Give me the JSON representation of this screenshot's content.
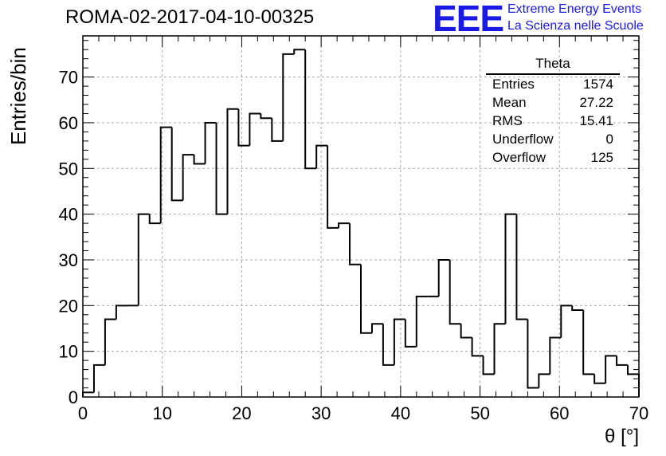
{
  "header": {
    "run_title": "ROMA-02-2017-04-10-00325",
    "logo_text": "EEE",
    "org_line1": "Extreme Energy Events",
    "org_line2": "La Scienza nelle Scuole"
  },
  "stats_box": {
    "title": "Theta",
    "rows": [
      {
        "label": "Entries",
        "value": "1574"
      },
      {
        "label": "Mean",
        "value": "27.22"
      },
      {
        "label": "RMS",
        "value": "15.41"
      },
      {
        "label": "Underflow",
        "value": "0"
      },
      {
        "label": "Overflow",
        "value": "125"
      }
    ]
  },
  "colors": {
    "logo": "#1a1ae6",
    "line": "#000000",
    "grid": "#aaaaaa"
  },
  "chart_data": {
    "type": "bar",
    "histogram": true,
    "xlabel": "θ [°]",
    "ylabel": "Entries/bin",
    "xlim": [
      0,
      70
    ],
    "ylim": [
      0,
      79
    ],
    "grid": true,
    "bin_width": 1.4,
    "x_ticks": [
      0,
      10,
      20,
      30,
      40,
      50,
      60,
      70
    ],
    "y_ticks": [
      0,
      10,
      20,
      30,
      40,
      50,
      60,
      70
    ],
    "values": [
      1,
      7,
      17,
      20,
      20,
      40,
      38,
      59,
      43,
      53,
      51,
      60,
      40,
      63,
      55,
      62,
      61,
      56,
      75,
      76,
      50,
      55,
      37,
      38,
      29,
      14,
      16,
      7,
      17,
      11,
      22,
      22,
      30,
      16,
      13,
      9,
      5,
      16,
      40,
      17,
      2,
      5,
      13,
      20,
      19,
      5,
      3,
      9,
      7,
      5
    ]
  }
}
